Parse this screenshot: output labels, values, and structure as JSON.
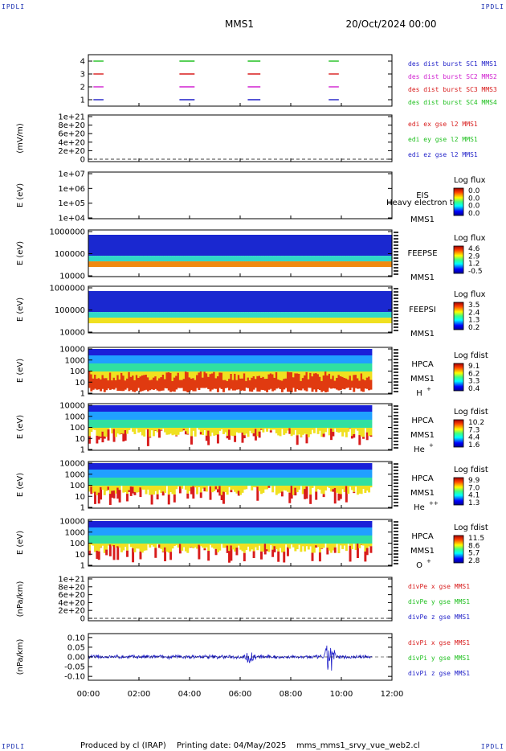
{
  "header": {
    "corner_label": "IPDLI",
    "spacecraft": "MMS1",
    "datetime": "20/Oct/2024 00:00"
  },
  "footer": {
    "produced_by": "Produced by  cl (IRAP)",
    "printing_date": "Printing date: 04/May/2025",
    "filename": "mms_mms1_srvy_vue_web2.cl"
  },
  "colors": {
    "blue": "#1f1fc8",
    "magenta": "#d020d0",
    "red": "#d81c1c",
    "green": "#20c020",
    "dark_blue": "#0a0a8c"
  },
  "chart_data": [
    {
      "type": "line",
      "name": "burst-intervals",
      "yticks": [
        "1",
        "2",
        "3",
        "4"
      ],
      "ylim": [
        0.5,
        4.5
      ],
      "legend": [
        {
          "label": "des dist burst SC1 MMS1",
          "color": "#1f1fc8"
        },
        {
          "label": "des dist burst SC2 MMS2",
          "color": "#d020d0"
        },
        {
          "label": "des dist burst SC3 MMS3",
          "color": "#d81c1c"
        },
        {
          "label": "des dist burst SC4 MMS4",
          "color": "#20c020"
        }
      ],
      "series": [
        {
          "y": 1,
          "color": "#1f1fc8",
          "segments": [
            [
              0.2,
              0.6
            ],
            [
              3.6,
              4.2
            ],
            [
              6.3,
              6.8
            ],
            [
              9.5,
              9.9
            ]
          ]
        },
        {
          "y": 2,
          "color": "#d020d0",
          "segments": [
            [
              0.2,
              0.6
            ],
            [
              3.6,
              4.2
            ],
            [
              6.3,
              6.8
            ],
            [
              9.5,
              9.9
            ]
          ]
        },
        {
          "y": 3,
          "color": "#d81c1c",
          "segments": [
            [
              0.2,
              0.6
            ],
            [
              3.6,
              4.2
            ],
            [
              6.3,
              6.8
            ],
            [
              9.5,
              9.9
            ]
          ]
        },
        {
          "y": 4,
          "color": "#20c020",
          "segments": [
            [
              0.2,
              0.6
            ],
            [
              3.6,
              4.2
            ],
            [
              6.3,
              6.8
            ],
            [
              9.5,
              9.9
            ]
          ]
        }
      ]
    },
    {
      "type": "line",
      "name": "edi-efield",
      "ylabel": "(mV/m)",
      "yticks": [
        "0",
        "2e+20",
        "4e+20",
        "6e+20",
        "8e+20",
        "1e+21"
      ],
      "ylim": [
        0,
        1e+21
      ],
      "legend": [
        {
          "label": "edi ex gse l2 MMS1",
          "color": "#d81c1c"
        },
        {
          "label": "edi ey gse l2 MMS1",
          "color": "#20c020"
        },
        {
          "label": "edi ez gse l2 MMS1",
          "color": "#1f1fc8"
        }
      ]
    },
    {
      "type": "heatmap",
      "name": "eis",
      "ylabel": "E (eV)",
      "yticks": [
        "1e+04",
        "1e+05",
        "1e+06",
        "1e+07"
      ],
      "instrument": "EIS",
      "spacecraft": "MMS1",
      "overlay_text": "Heavy electron to",
      "colorbar": {
        "title": "Log flux",
        "ticks": [
          "0.0",
          "0.0",
          "0.0",
          "0.0"
        ]
      }
    },
    {
      "type": "heatmap",
      "name": "feeps-e",
      "ylabel": "E (eV)",
      "yticks": [
        "10000",
        "100000",
        "1000000"
      ],
      "instrument": "FEEPSE",
      "spacecraft": "MMS1",
      "colorbar": {
        "title": "Log flux",
        "ticks": [
          "4.6",
          "2.9",
          "1.2",
          "-0.5"
        ]
      },
      "x_extent": [
        0,
        12
      ]
    },
    {
      "type": "heatmap",
      "name": "feeps-i",
      "ylabel": "E (eV)",
      "yticks": [
        "10000",
        "100000",
        "1000000"
      ],
      "instrument": "FEEPSI",
      "spacecraft": "MMS1",
      "colorbar": {
        "title": "Log flux",
        "ticks": [
          "3.5",
          "2.4",
          "1.3",
          "0.2"
        ]
      },
      "x_extent": [
        0,
        12
      ]
    },
    {
      "type": "heatmap",
      "name": "hpca-h",
      "ylabel": "E (eV)",
      "yticks": [
        "1",
        "10",
        "100",
        "1000",
        "10000"
      ],
      "instrument": "HPCA",
      "spacecraft": "MMS1",
      "species": "H",
      "species_sup": "+",
      "colorbar": {
        "title": "Log fdist",
        "ticks": [
          "9.1",
          "6.2",
          "3.3",
          "0.4"
        ]
      },
      "x_extent": [
        0,
        11.2
      ]
    },
    {
      "type": "heatmap",
      "name": "hpca-he",
      "ylabel": "E (eV)",
      "yticks": [
        "1",
        "10",
        "100",
        "1000",
        "10000"
      ],
      "instrument": "HPCA",
      "spacecraft": "MMS1",
      "species": "He",
      "species_sup": "+",
      "colorbar": {
        "title": "Log fdist",
        "ticks": [
          "10.2",
          "7.3",
          "4.4",
          "1.6"
        ]
      },
      "x_extent": [
        0,
        11.2
      ]
    },
    {
      "type": "heatmap",
      "name": "hpca-hepp",
      "ylabel": "E (eV)",
      "yticks": [
        "1",
        "10",
        "100",
        "1000",
        "10000"
      ],
      "instrument": "HPCA",
      "spacecraft": "MMS1",
      "species": "He",
      "species_sup": "++",
      "colorbar": {
        "title": "Log fdist",
        "ticks": [
          "9.9",
          "7.0",
          "4.1",
          "1.3"
        ]
      },
      "x_extent": [
        0,
        11.2
      ]
    },
    {
      "type": "heatmap",
      "name": "hpca-o",
      "ylabel": "E (eV)",
      "yticks": [
        "1",
        "10",
        "100",
        "1000",
        "10000"
      ],
      "instrument": "HPCA",
      "spacecraft": "MMS1",
      "species": "O",
      "species_sup": "+",
      "colorbar": {
        "title": "Log fdist",
        "ticks": [
          "11.5",
          "8.6",
          "5.7",
          "2.8"
        ]
      },
      "x_extent": [
        0,
        11.2
      ]
    },
    {
      "type": "line",
      "name": "divpe",
      "ylabel": "(nPa/km)",
      "yticks": [
        "0",
        "2e+20",
        "4e+20",
        "6e+20",
        "8e+20",
        "1e+21"
      ],
      "ylim": [
        0,
        1e+21
      ],
      "legend": [
        {
          "label": "divPe x gse MMS1",
          "color": "#d81c1c"
        },
        {
          "label": "divPe y gse MMS1",
          "color": "#20c020"
        },
        {
          "label": "divPe z gse MMS1",
          "color": "#1f1fc8"
        }
      ]
    },
    {
      "type": "line",
      "name": "divpi",
      "ylabel": "(nPa/km)",
      "yticks": [
        "-0.10",
        "-0.05",
        "0.00",
        "0.05",
        "0.10"
      ],
      "ylim": [
        -0.12,
        0.12
      ],
      "legend": [
        {
          "label": "divPi x gse MMS1",
          "color": "#d81c1c"
        },
        {
          "label": "divPi y gse MMS1",
          "color": "#20c020"
        },
        {
          "label": "divPi z gse MMS1",
          "color": "#1f1fc8"
        }
      ],
      "x_extent": [
        0,
        11.2
      ],
      "spike_times": [
        6.4,
        9.55
      ]
    }
  ],
  "time_axis": {
    "xlim": [
      0,
      12
    ],
    "ticks": [
      "00:00",
      "02:00",
      "04:00",
      "06:00",
      "08:00",
      "10:00",
      "12:00"
    ]
  }
}
